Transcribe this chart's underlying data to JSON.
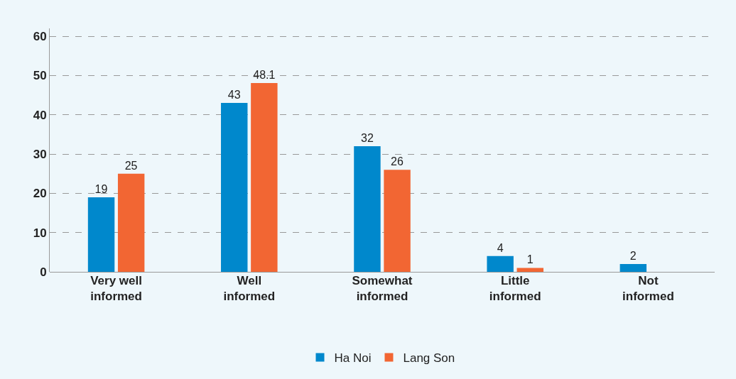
{
  "chart_data": {
    "type": "bar",
    "categories": [
      "Very well\ninformed",
      "Well\ninformed",
      "Somewhat\ninformed",
      "Little\ninformed",
      "Not\ninformed"
    ],
    "series": [
      {
        "name": "Ha Noi",
        "color": "#0088cc",
        "values": [
          19,
          43,
          32,
          4,
          2
        ]
      },
      {
        "name": "Lang Son",
        "color": "#f26633",
        "values": [
          25,
          48.1,
          26,
          1,
          null
        ]
      }
    ],
    "ylim": [
      0,
      62
    ],
    "yticks": [
      0,
      10,
      20,
      30,
      40,
      50,
      60
    ],
    "grid": "y",
    "legend": "bottom",
    "data_labels": true
  }
}
